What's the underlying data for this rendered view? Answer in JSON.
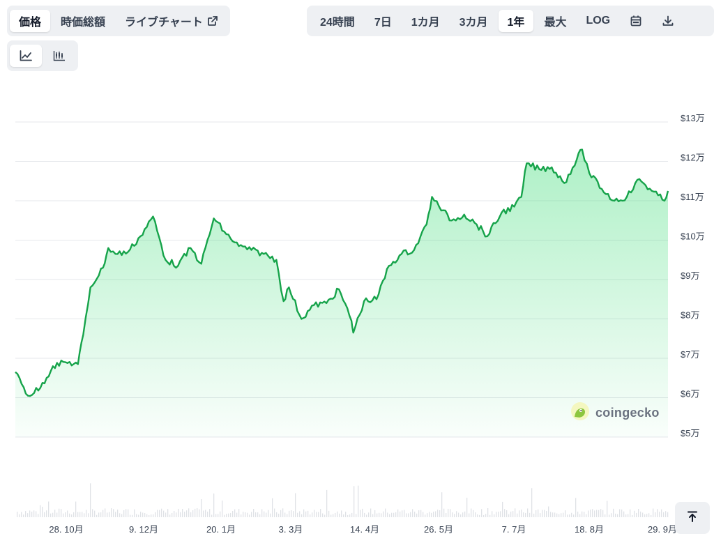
{
  "tabs_left": [
    {
      "label": "価格",
      "active": true
    },
    {
      "label": "時価総額",
      "active": false
    },
    {
      "label": "ライブチャート",
      "active": false,
      "icon": "external-link-icon"
    }
  ],
  "ranges": [
    {
      "label": "24時間",
      "active": false
    },
    {
      "label": "7日",
      "active": false
    },
    {
      "label": "1カ月",
      "active": false
    },
    {
      "label": "3カ月",
      "active": false
    },
    {
      "label": "1年",
      "active": true
    },
    {
      "label": "最大",
      "active": false
    },
    {
      "label": "LOG",
      "active": false
    }
  ],
  "toolbar_icons": [
    "calendar-icon",
    "download-icon"
  ],
  "chart_type_icons": [
    "line-chart-icon",
    "candlestick-icon"
  ],
  "watermark": {
    "text": "coingecko",
    "icon": "coingecko-logo-icon"
  },
  "colors": {
    "line": "#16a34a",
    "fill": "#4ade80",
    "grid": "#e5e7eb",
    "volume": "#d1d5db"
  },
  "chart_data": {
    "type": "area",
    "y_ticks": [
      "$5万",
      "$6万",
      "$7万",
      "$8万",
      "$9万",
      "$10万",
      "$11万",
      "$12万",
      "$13万"
    ],
    "ylim": [
      50000,
      130000
    ],
    "x_ticks": [
      "28. 10月",
      "9. 12月",
      "20. 1月",
      "3. 3月",
      "14. 4月",
      "26. 5月",
      "7. 7月",
      "18. 8月",
      "29. 9月"
    ],
    "grid": true,
    "series": [
      {
        "x": [
          "2024-10-01",
          "2024-10-08",
          "2024-10-15",
          "2024-10-22",
          "2024-10-29",
          "2024-11-05",
          "2024-11-08",
          "2024-11-12",
          "2024-11-19",
          "2024-11-22",
          "2024-11-26",
          "2024-12-03",
          "2024-12-10",
          "2024-12-17",
          "2024-12-24",
          "2024-12-31",
          "2025-01-07",
          "2025-01-13",
          "2025-01-20",
          "2025-01-27",
          "2025-02-03",
          "2025-02-10",
          "2025-02-17",
          "2025-02-24",
          "2025-02-28",
          "2025-03-03",
          "2025-03-10",
          "2025-03-17",
          "2025-03-24",
          "2025-03-31",
          "2025-04-07",
          "2025-04-08",
          "2025-04-14",
          "2025-04-21",
          "2025-04-28",
          "2025-05-05",
          "2025-05-12",
          "2025-05-19",
          "2025-05-22",
          "2025-05-26",
          "2025-06-02",
          "2025-06-09",
          "2025-06-16",
          "2025-06-22",
          "2025-06-30",
          "2025-07-07",
          "2025-07-11",
          "2025-07-14",
          "2025-07-21",
          "2025-07-28",
          "2025-08-04",
          "2025-08-11",
          "2025-08-14",
          "2025-08-18",
          "2025-08-25",
          "2025-09-01",
          "2025-09-08",
          "2025-09-15",
          "2025-09-22",
          "2025-09-29",
          "2025-10-01"
        ],
        "values": [
          66500,
          60500,
          62500,
          68000,
          69000,
          68500,
          76000,
          88000,
          93000,
          98000,
          96500,
          97000,
          101000,
          106000,
          95000,
          93500,
          98000,
          94000,
          105500,
          101500,
          98500,
          97500,
          96500,
          95000,
          84500,
          88000,
          80000,
          83500,
          84000,
          87500,
          79500,
          76500,
          84500,
          85000,
          93500,
          96500,
          97500,
          104000,
          111000,
          108500,
          105000,
          106500,
          104000,
          101000,
          107000,
          108500,
          111000,
          119500,
          118000,
          118500,
          114500,
          120500,
          123000,
          117000,
          113000,
          110000,
          111000,
          115500,
          112500,
          110000,
          112500
        ]
      }
    ]
  }
}
